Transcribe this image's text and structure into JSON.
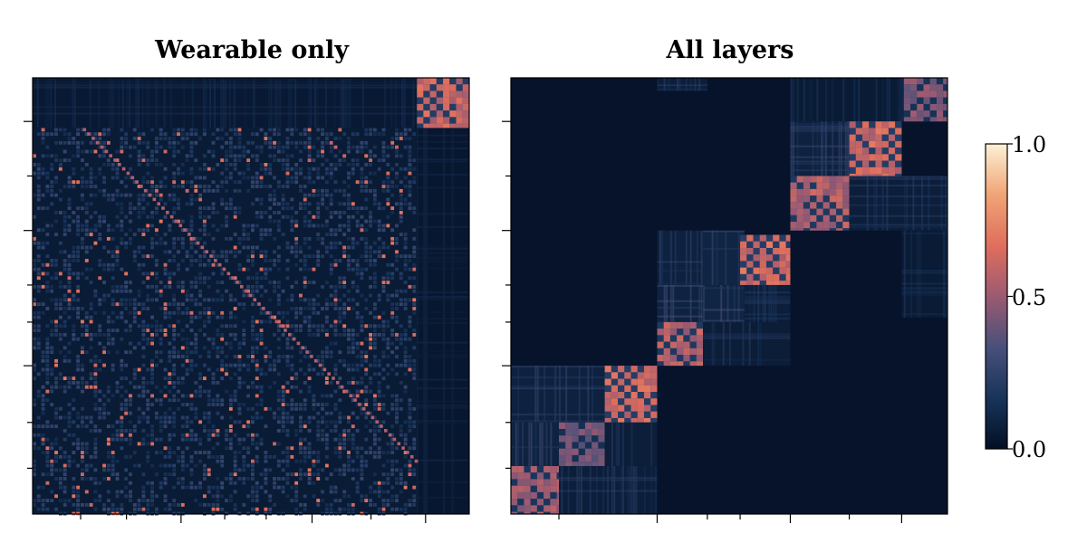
{
  "chart_data": [
    {
      "type": "heatmap",
      "title": "Wearable only",
      "matrix_size": 200,
      "value_range": [
        0.0,
        1.0
      ],
      "xticks": [
        22,
        43,
        68,
        88,
        107,
        128,
        155,
        180
      ],
      "yticks": [
        20,
        45,
        70,
        95,
        112,
        132,
        158,
        179
      ],
      "blocks": [
        {
          "rows": [
            0,
            23
          ],
          "cols": [
            176,
            200
          ],
          "value": 0.6,
          "pattern": "checker"
        },
        {
          "rows": [
            23,
            200
          ],
          "cols": [
            0,
            176
          ],
          "value": 0.12,
          "pattern": "speckle"
        },
        {
          "rows": [
            0,
            23
          ],
          "cols": [
            0,
            176
          ],
          "value": 0.1,
          "pattern": "stripes"
        },
        {
          "rows": [
            23,
            200
          ],
          "cols": [
            176,
            200
          ],
          "value": 0.08,
          "pattern": "stripes"
        }
      ],
      "diagonal": {
        "value": 0.55
      }
    },
    {
      "type": "heatmap",
      "title": "All layers",
      "matrix_size": 200,
      "value_range": [
        0.0,
        1.0
      ],
      "xticks": [
        22,
        67,
        90,
        105,
        128,
        155,
        179
      ],
      "yticks": [
        20,
        45,
        70,
        95,
        112,
        132,
        158,
        179
      ],
      "blocks": [
        {
          "rows": [
            0,
            6
          ],
          "cols": [
            67,
            90
          ],
          "value": 0.15,
          "pattern": "stripes"
        },
        {
          "rows": [
            0,
            20
          ],
          "cols": [
            128,
            180
          ],
          "value": 0.12,
          "pattern": "stripes"
        },
        {
          "rows": [
            0,
            20
          ],
          "cols": [
            180,
            200
          ],
          "value": 0.45,
          "pattern": "checker"
        },
        {
          "rows": [
            20,
            45
          ],
          "cols": [
            128,
            155
          ],
          "value": 0.18,
          "pattern": "stripes"
        },
        {
          "rows": [
            20,
            45
          ],
          "cols": [
            155,
            179
          ],
          "value": 0.62,
          "pattern": "checker"
        },
        {
          "rows": [
            45,
            70
          ],
          "cols": [
            128,
            155
          ],
          "value": 0.55,
          "pattern": "checker"
        },
        {
          "rows": [
            45,
            70
          ],
          "cols": [
            155,
            200
          ],
          "value": 0.15,
          "pattern": "stripes"
        },
        {
          "rows": [
            70,
            95
          ],
          "cols": [
            67,
            88
          ],
          "value": 0.18,
          "pattern": "stripes"
        },
        {
          "rows": [
            70,
            95
          ],
          "cols": [
            88,
            107
          ],
          "value": 0.22,
          "pattern": "stripes"
        },
        {
          "rows": [
            72,
            95
          ],
          "cols": [
            105,
            128
          ],
          "value": 0.62,
          "pattern": "checker"
        },
        {
          "rows": [
            95,
            112
          ],
          "cols": [
            67,
            88
          ],
          "value": 0.2,
          "pattern": "stripes"
        },
        {
          "rows": [
            95,
            112
          ],
          "cols": [
            88,
            107
          ],
          "value": 0.22,
          "pattern": "stripes"
        },
        {
          "rows": [
            95,
            112
          ],
          "cols": [
            107,
            128
          ],
          "value": 0.15,
          "pattern": "stripes"
        },
        {
          "rows": [
            70,
            110
          ],
          "cols": [
            179,
            200
          ],
          "value": 0.12,
          "pattern": "stripes"
        },
        {
          "rows": [
            112,
            132
          ],
          "cols": [
            67,
            88
          ],
          "value": 0.55,
          "pattern": "checker"
        },
        {
          "rows": [
            112,
            132
          ],
          "cols": [
            88,
            128
          ],
          "value": 0.14,
          "pattern": "stripes"
        },
        {
          "rows": [
            132,
            158
          ],
          "cols": [
            0,
            43
          ],
          "value": 0.18,
          "pattern": "stripes"
        },
        {
          "rows": [
            132,
            158
          ],
          "cols": [
            43,
            67
          ],
          "value": 0.62,
          "pattern": "checker"
        },
        {
          "rows": [
            158,
            178
          ],
          "cols": [
            0,
            22
          ],
          "value": 0.2,
          "pattern": "stripes"
        },
        {
          "rows": [
            158,
            178
          ],
          "cols": [
            22,
            43
          ],
          "value": 0.42,
          "pattern": "checker"
        },
        {
          "rows": [
            158,
            178
          ],
          "cols": [
            43,
            67
          ],
          "value": 0.15,
          "pattern": "stripes"
        },
        {
          "rows": [
            178,
            200
          ],
          "cols": [
            0,
            22
          ],
          "value": 0.5,
          "pattern": "checker"
        },
        {
          "rows": [
            178,
            200
          ],
          "cols": [
            22,
            67
          ],
          "value": 0.15,
          "pattern": "stripes"
        }
      ]
    }
  ],
  "colorbar": {
    "range": [
      0.0,
      1.0
    ],
    "tick_labels": [
      "1.0",
      "0.5",
      "0.0"
    ],
    "tick_values": [
      1.0,
      0.5,
      0.0
    ],
    "colormap_stops": [
      "#040f24",
      "#18345a",
      "#48507a",
      "#9b5a72",
      "#e06e5c",
      "#f0a476",
      "#fcf1d6"
    ]
  }
}
